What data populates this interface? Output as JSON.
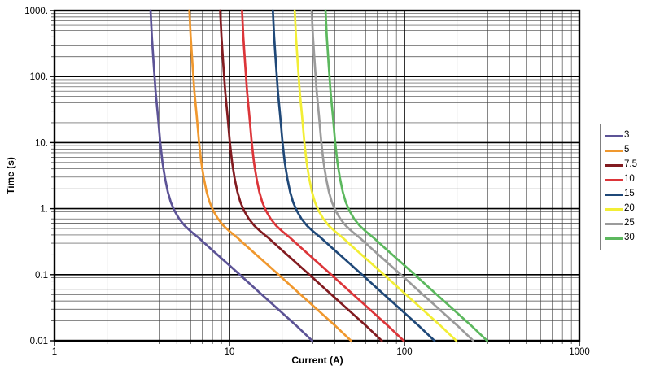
{
  "page": {
    "background": "#ffffff"
  },
  "chart_data": {
    "type": "line",
    "title": "",
    "xlabel": "Current (A)",
    "ylabel": "Time (s)",
    "x_scale": "log",
    "y_scale": "log",
    "x_range": [
      1,
      1000
    ],
    "y_range": [
      0.01,
      1000
    ],
    "grid": "major and minor log grid, black on white",
    "legend_position": "right-outside",
    "x_tick_labels": [
      "1",
      "10",
      "100",
      "1000"
    ],
    "y_tick_labels": [
      "1000.",
      "100.",
      "10.",
      "1.",
      "0.1",
      "0.01"
    ],
    "times_s": [
      1000,
      400,
      150,
      60,
      25,
      10,
      5,
      2.8,
      1.8,
      1.25,
      0.92,
      0.7,
      0.55,
      0.455,
      0.37,
      0.248,
      0.152,
      0.0895,
      0.0524,
      0.0302,
      0.0171,
      0.01
    ],
    "series": [
      {
        "label": "3",
        "rating_amps": 3,
        "color": "#5C5396",
        "currents_amps": [
          3.54,
          3.6,
          3.69,
          3.78,
          3.9,
          4.02,
          4.14,
          4.29,
          4.44,
          4.62,
          4.86,
          5.16,
          5.55,
          6.0,
          6.6,
          7.8,
          9.6,
          12.0,
          15.0,
          18.9,
          24.0,
          29.7
        ]
      },
      {
        "label": "5",
        "rating_amps": 5,
        "color": "#F0982E",
        "currents_amps": [
          5.9,
          6.0,
          6.15,
          6.3,
          6.5,
          6.7,
          6.9,
          7.15,
          7.4,
          7.7,
          8.1,
          8.6,
          9.25,
          10.0,
          11.0,
          13.0,
          16.0,
          20.0,
          25.0,
          31.5,
          40.0,
          49.5
        ]
      },
      {
        "label": "7.5",
        "rating_amps": 7.5,
        "color": "#821B20",
        "currents_amps": [
          8.85,
          9.0,
          9.22,
          9.45,
          9.75,
          10.05,
          10.35,
          10.72,
          11.1,
          11.55,
          12.15,
          12.9,
          13.88,
          15.0,
          16.5,
          19.5,
          24.0,
          30.0,
          37.5,
          47.2,
          60.0,
          74.2
        ]
      },
      {
        "label": "10",
        "rating_amps": 10,
        "color": "#DC3539",
        "currents_amps": [
          11.8,
          12.0,
          12.3,
          12.6,
          13.0,
          13.4,
          13.8,
          14.3,
          14.8,
          15.4,
          16.2,
          17.2,
          18.5,
          20.0,
          22.0,
          26.0,
          32.0,
          40.0,
          50.0,
          63.0,
          80.0,
          99.0
        ]
      },
      {
        "label": "15",
        "rating_amps": 15,
        "color": "#1F4878",
        "currents_amps": [
          17.7,
          18.0,
          18.45,
          18.9,
          19.5,
          20.1,
          20.7,
          21.45,
          22.2,
          23.1,
          24.3,
          25.8,
          27.75,
          30.0,
          33.0,
          39.0,
          48.0,
          60.0,
          75.0,
          94.5,
          120.0,
          148.5
        ]
      },
      {
        "label": "20",
        "rating_amps": 20,
        "color": "#F2EE35",
        "currents_amps": [
          23.6,
          24.0,
          24.6,
          25.2,
          26.0,
          26.8,
          27.6,
          28.6,
          29.6,
          30.8,
          32.4,
          34.4,
          37.0,
          40.0,
          44.0,
          52.0,
          64.0,
          80.0,
          100.0,
          126.0,
          160.0,
          198.0
        ]
      },
      {
        "label": "25",
        "rating_amps": 25,
        "color": "#9B9B9B",
        "currents_amps": [
          29.5,
          30.0,
          30.75,
          31.5,
          32.5,
          33.5,
          34.5,
          35.75,
          37.0,
          38.5,
          40.5,
          43.0,
          46.25,
          50.0,
          55.0,
          65.0,
          80.0,
          100.0,
          125.0,
          157.5,
          200.0,
          247.5
        ]
      },
      {
        "label": "30",
        "rating_amps": 30,
        "color": "#5CB85E",
        "currents_amps": [
          35.4,
          36.0,
          36.9,
          37.8,
          39.0,
          40.2,
          41.4,
          42.9,
          44.4,
          46.2,
          48.6,
          51.6,
          55.5,
          60.0,
          66.0,
          78.0,
          96.0,
          120.0,
          150.0,
          189.0,
          240.0,
          297.0
        ]
      }
    ]
  },
  "colors": {
    "grid_minor": "#454545",
    "grid_major": "#000000",
    "plot_border": "#000000",
    "legend_border": "#7f7f7f",
    "background": "#ffffff"
  }
}
